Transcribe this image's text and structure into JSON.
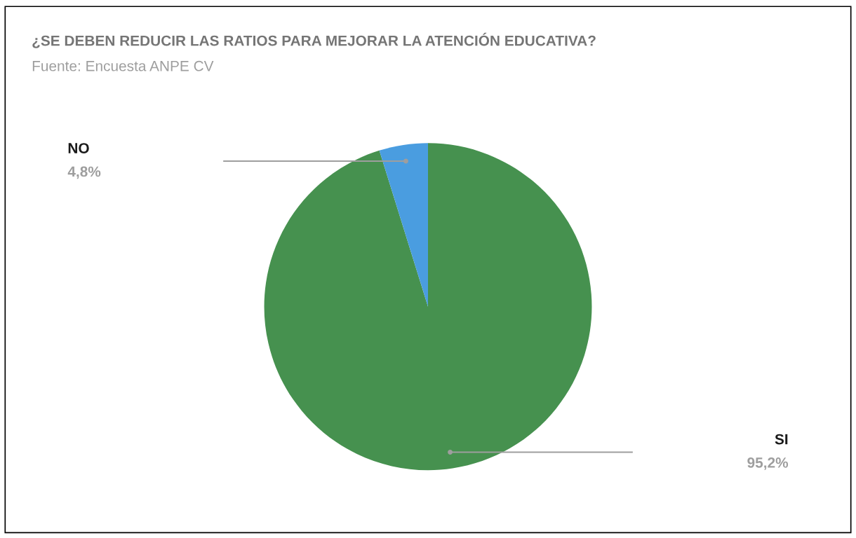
{
  "chart_data": {
    "type": "pie",
    "title": "¿SE DEBEN REDUCIR LAS RATIOS PARA MEJORAR LA ATENCIÓN EDUCATIVA?",
    "subtitle": "Fuente: Encuesta ANPE CV",
    "categories": [
      "SI",
      "NO"
    ],
    "values": [
      95.2,
      4.8
    ],
    "colors": [
      "#46914f",
      "#4a9de0"
    ],
    "value_labels": [
      "95,2%",
      "4,8%"
    ]
  }
}
